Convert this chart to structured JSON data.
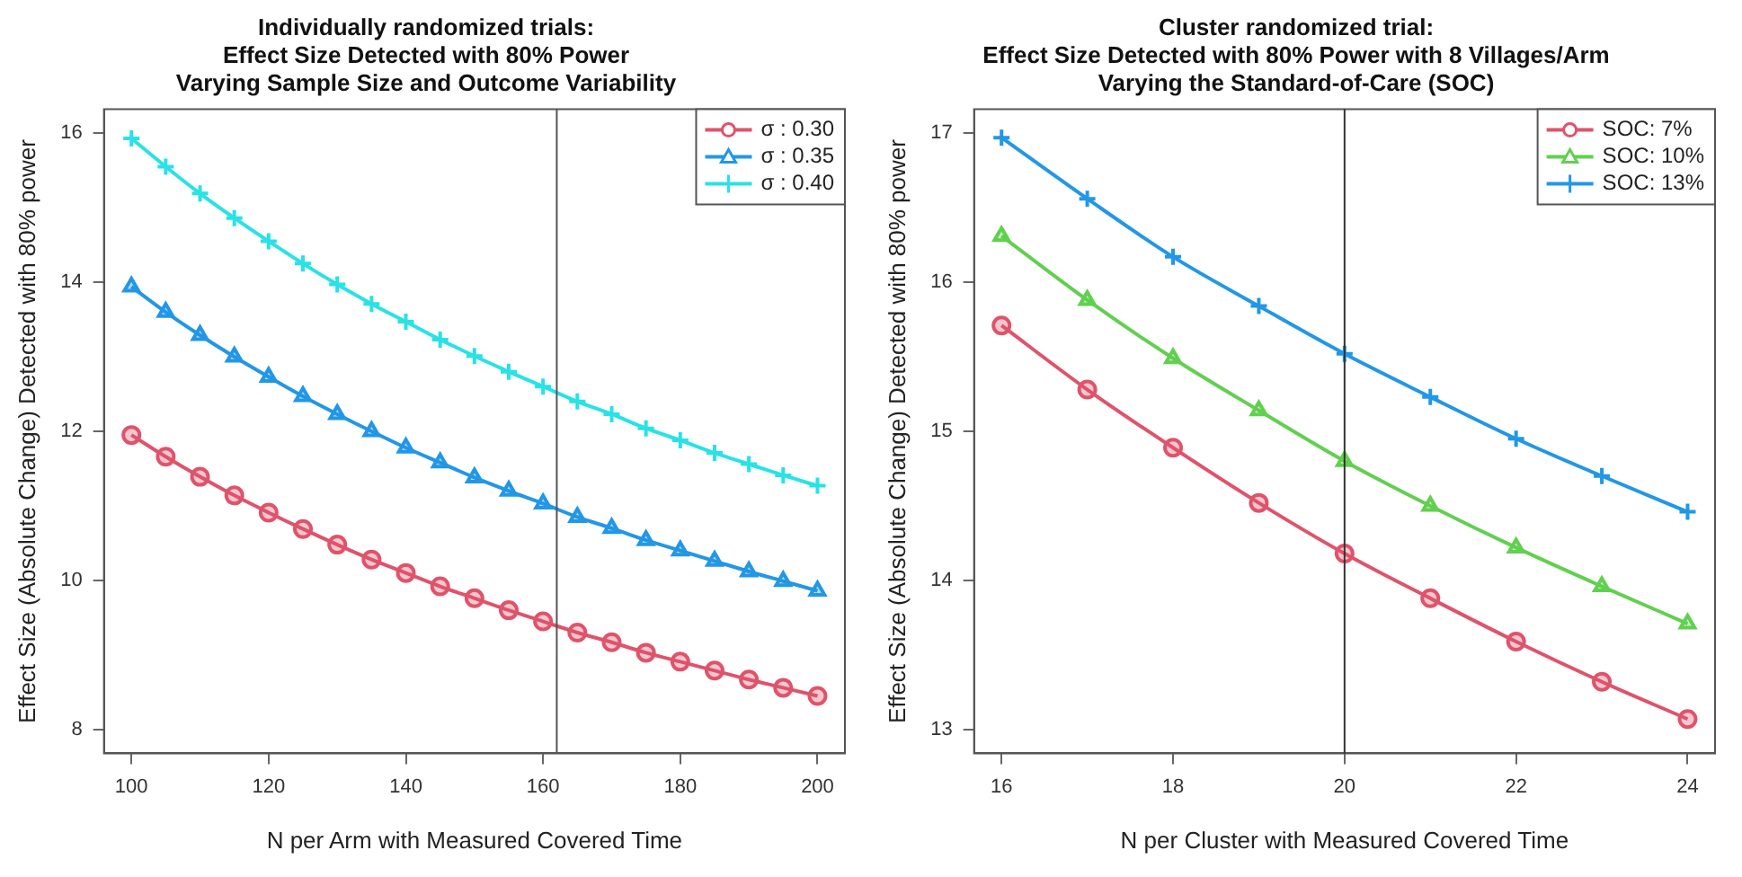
{
  "chart_data": [
    {
      "type": "line",
      "title": "Individually randomized trials:\nEffect Size Detected with 80% Power\nVarying Sample Size and Outcome Variability",
      "xlabel": "N per Arm with Measured Covered Time",
      "ylabel": "Effect Size (Absolute Change) Detected with 80% power",
      "x": [
        100,
        105,
        110,
        115,
        120,
        125,
        130,
        135,
        140,
        145,
        150,
        155,
        160,
        165,
        170,
        175,
        180,
        185,
        190,
        195,
        200
      ],
      "series": [
        {
          "name": "σ : 0.30",
          "color": "#df536b",
          "marker": "circle",
          "values": [
            11.95,
            11.66,
            11.39,
            11.14,
            10.91,
            10.69,
            10.48,
            10.28,
            10.1,
            9.92,
            9.76,
            9.6,
            9.45,
            9.3,
            9.17,
            9.03,
            8.91,
            8.79,
            8.67,
            8.56,
            8.45
          ]
        },
        {
          "name": "σ : 0.35",
          "color": "#2297e6",
          "marker": "triangle",
          "values": [
            13.94,
            13.6,
            13.29,
            13.0,
            12.73,
            12.47,
            12.23,
            12.0,
            11.78,
            11.58,
            11.38,
            11.2,
            11.03,
            10.85,
            10.7,
            10.54,
            10.4,
            10.26,
            10.12,
            9.99,
            9.86
          ]
        },
        {
          "name": "σ : 0.40",
          "color": "#28e2e5",
          "marker": "cross",
          "values": [
            15.93,
            15.55,
            15.19,
            14.86,
            14.55,
            14.25,
            13.97,
            13.71,
            13.47,
            13.23,
            13.01,
            12.8,
            12.6,
            12.4,
            12.23,
            12.04,
            11.88,
            11.71,
            11.56,
            11.41,
            11.27
          ]
        }
      ],
      "xlim": [
        96,
        204
      ],
      "xticks": [
        100,
        120,
        140,
        160,
        180,
        200
      ],
      "ylim": [
        7.68,
        16.32
      ],
      "yticks": [
        8,
        10,
        12,
        14,
        16
      ],
      "ref_lines": [
        {
          "axis": "x",
          "value": 162,
          "color": "#555555"
        }
      ],
      "grid": false,
      "legend": "top right",
      "line_style": "solid"
    },
    {
      "type": "line",
      "title": "Cluster randomized trial:\nEffect Size Detected with 80% Power with 8 Villages/Arm\nVarying the Standard-of-Care (SOC)",
      "xlabel": "N per Cluster with Measured Covered Time",
      "ylabel": "Effect Size (Absolute Change) Detected with 80% power",
      "x": [
        16,
        17,
        18,
        19,
        20,
        21,
        22,
        23,
        24
      ],
      "series": [
        {
          "name": "SOC: 7%",
          "color": "#df536b",
          "marker": "circle",
          "values": [
            15.71,
            15.28,
            14.89,
            14.52,
            14.18,
            13.88,
            13.59,
            13.32,
            13.07
          ]
        },
        {
          "name": "SOC: 10%",
          "color": "#61d04f",
          "marker": "triangle",
          "values": [
            16.31,
            15.88,
            15.49,
            15.14,
            14.8,
            14.5,
            14.22,
            13.96,
            13.71
          ]
        },
        {
          "name": "SOC: 13%",
          "color": "#2297e6",
          "marker": "cross",
          "values": [
            16.97,
            16.56,
            16.17,
            15.84,
            15.52,
            15.23,
            14.95,
            14.7,
            14.46
          ]
        }
      ],
      "xlim": [
        15.68,
        24.32
      ],
      "xticks": [
        16,
        18,
        20,
        22,
        24
      ],
      "ylim": [
        12.84,
        17.16
      ],
      "yticks": [
        13,
        14,
        15,
        16,
        17
      ],
      "ref_lines": [
        {
          "axis": "x",
          "value": 20,
          "color": "#333333"
        }
      ],
      "grid": false,
      "legend": "top right",
      "line_style": "solid"
    }
  ]
}
